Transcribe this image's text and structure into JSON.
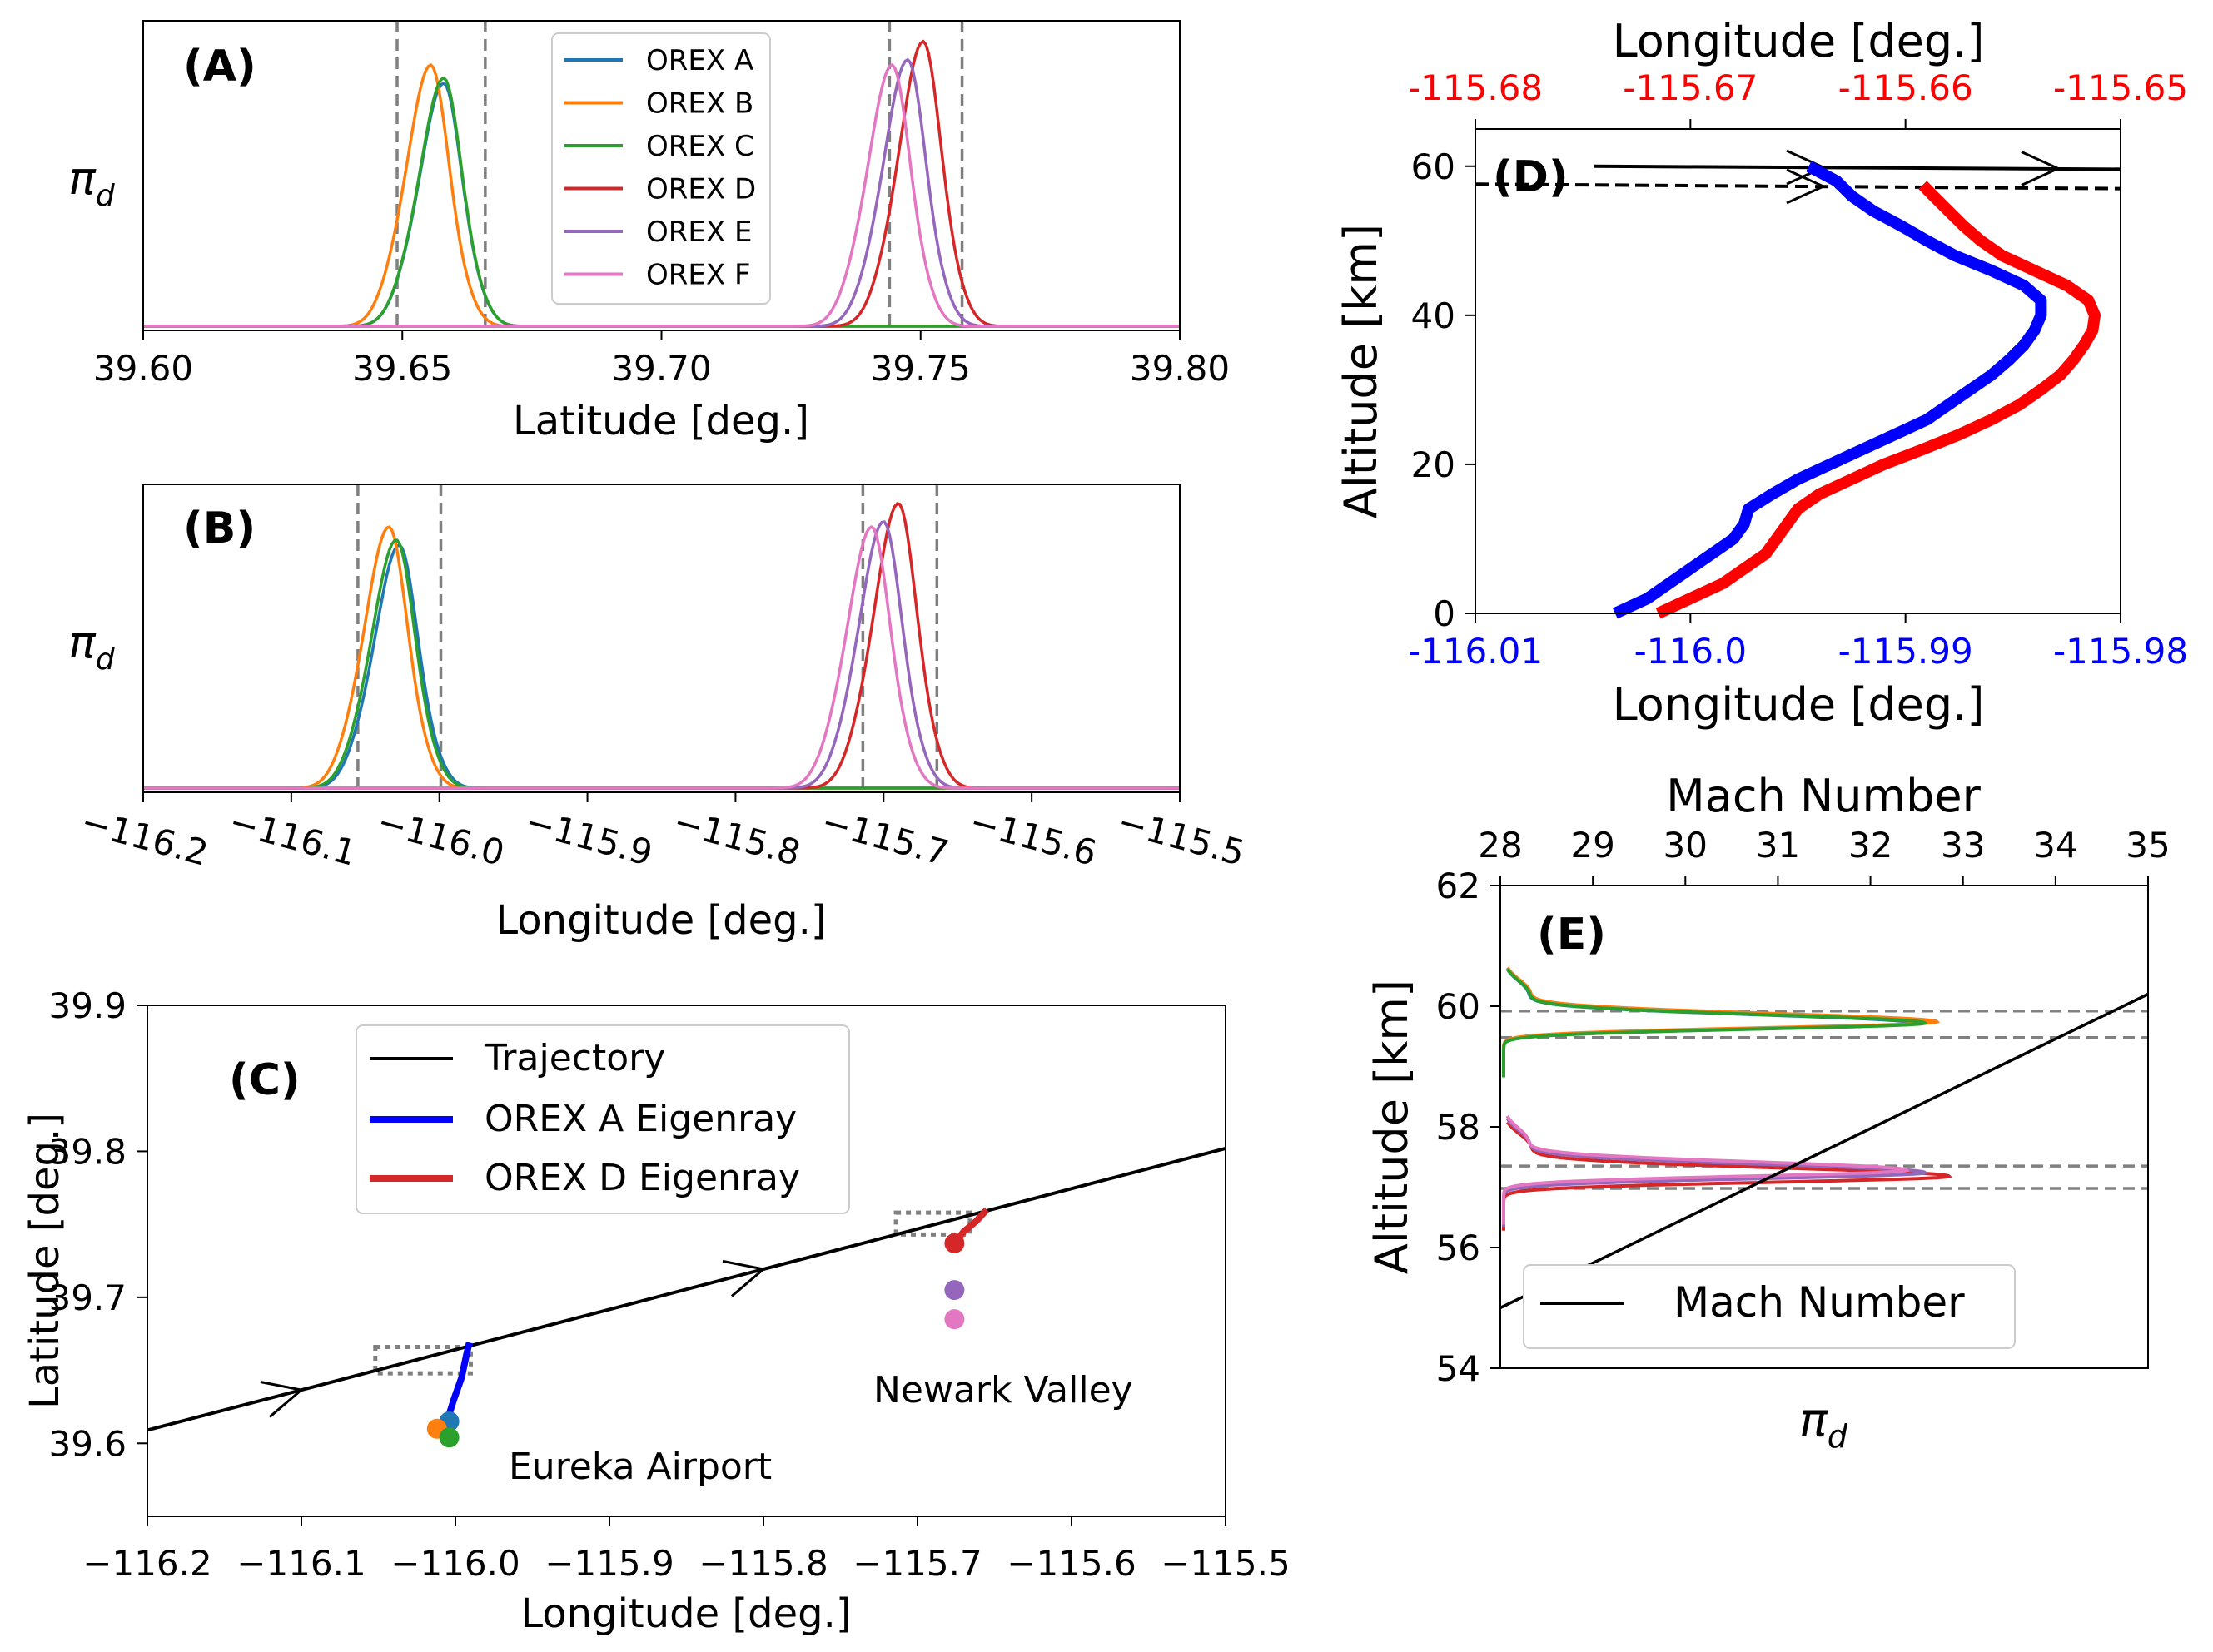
{
  "colors": {
    "orex_a": "#1f77b4",
    "orex_b": "#ff7f0e",
    "orex_c": "#2ca02c",
    "orex_d": "#d62728",
    "orex_e": "#9467bd",
    "orex_f": "#e377c2",
    "eigen_a": "#0000ff",
    "eigen_d": "#ff0000",
    "ref_line": "#808080",
    "frame": "#000000"
  },
  "chart_data": [
    {
      "panel": "A",
      "type": "line",
      "panel_label": "(A)",
      "xlabel": "Latitude [deg.]",
      "ylabel": "π_d",
      "xlim": [
        39.6,
        39.8
      ],
      "xticks": [
        "39.60",
        "39.65",
        "39.70",
        "39.75",
        "39.80"
      ],
      "ref_lines": [
        39.649,
        39.666,
        39.744,
        39.758
      ],
      "legend": [
        "OREX A",
        "OREX B",
        "OREX C",
        "OREX D",
        "OREX E",
        "OREX F"
      ],
      "series": [
        {
          "name": "OREX A",
          "peak": 39.658,
          "height": 0.93
        },
        {
          "name": "OREX B",
          "peak": 39.6555,
          "height": 1.0
        },
        {
          "name": "OREX C",
          "peak": 39.658,
          "height": 0.95
        },
        {
          "name": "OREX D",
          "peak": 39.7505,
          "height": 1.09
        },
        {
          "name": "OREX E",
          "peak": 39.7475,
          "height": 1.02
        },
        {
          "name": "OREX F",
          "peak": 39.7445,
          "height": 1.0
        }
      ]
    },
    {
      "panel": "B",
      "type": "line",
      "panel_label": "(B)",
      "xlabel": "Longitude [deg.]",
      "ylabel": "π_d",
      "xlim": [
        -116.2,
        -115.5
      ],
      "xticks": [
        "−116.2",
        "−116.1",
        "−116.0",
        "−115.9",
        "−115.8",
        "−115.7",
        "−115.6",
        "−115.5"
      ],
      "ref_lines": [
        -116.055,
        -115.999,
        -115.714,
        -115.664
      ],
      "series": [
        {
          "name": "OREX A",
          "peak": -116.027,
          "height": 0.93
        },
        {
          "name": "OREX B",
          "peak": -116.034,
          "height": 1.0
        },
        {
          "name": "OREX C",
          "peak": -116.029,
          "height": 0.95
        },
        {
          "name": "OREX D",
          "peak": -115.69,
          "height": 1.09
        },
        {
          "name": "OREX E",
          "peak": -115.7,
          "height": 1.02
        },
        {
          "name": "OREX F",
          "peak": -115.708,
          "height": 1.0
        }
      ]
    },
    {
      "panel": "C",
      "type": "line",
      "panel_label": "(C)",
      "xlabel": "Longitude [deg.]",
      "ylabel": "Latitude [deg.]",
      "xlim": [
        -116.2,
        -115.5
      ],
      "ylim": [
        39.55,
        39.9
      ],
      "xticks": [
        "−116.2",
        "−116.1",
        "−116.0",
        "−115.9",
        "−115.8",
        "−115.7",
        "−115.6",
        "−115.5"
      ],
      "yticks": [
        "39.6",
        "39.7",
        "39.8",
        "39.9"
      ],
      "legend": [
        "Trajectory",
        "OREX A Eigenray",
        "OREX D Eigenray"
      ],
      "trajectory": [
        [
          -116.2,
          39.609
        ],
        [
          -115.5,
          39.802
        ]
      ],
      "eigenray_a": [
        [
          -116.004,
          39.614
        ],
        [
          -116.004,
          39.62
        ],
        [
          -116.001,
          39.63
        ],
        [
          -115.996,
          39.645
        ],
        [
          -115.993,
          39.66
        ],
        [
          -115.991,
          39.669
        ]
      ],
      "eigenray_d": [
        [
          -115.676,
          39.737
        ],
        [
          -115.67,
          39.745
        ],
        [
          -115.662,
          39.752
        ],
        [
          -115.655,
          39.76
        ]
      ],
      "stations": [
        {
          "name": "OREX A",
          "x": -116.004,
          "y": 39.615
        },
        {
          "name": "OREX B",
          "x": -116.012,
          "y": 39.61
        },
        {
          "name": "OREX C",
          "x": -116.004,
          "y": 39.604
        },
        {
          "name": "OREX D",
          "x": -115.676,
          "y": 39.737
        },
        {
          "name": "OREX E",
          "x": -115.676,
          "y": 39.705
        },
        {
          "name": "OREX F",
          "x": -115.676,
          "y": 39.685
        }
      ],
      "dotted_boxes": [
        {
          "x1": -116.052,
          "x2": -115.99,
          "y1": 39.648,
          "y2": 39.666
        },
        {
          "x1": -115.714,
          "x2": -115.666,
          "y1": 39.743,
          "y2": 39.758
        }
      ],
      "annotations": [
        {
          "text": "Eureka Airport",
          "x": -115.99,
          "y": 39.589
        },
        {
          "text": "Newark Valley",
          "x": -115.845,
          "y": 39.641
        }
      ]
    },
    {
      "panel": "D",
      "type": "line",
      "panel_label": "(D)",
      "xlabel": "Longitude [deg.]",
      "top_xlabel": "Longitude [deg.]",
      "ylabel": "Altitude [km]",
      "xlim": [
        -116.01,
        -115.98
      ],
      "top_xlim": [
        -115.68,
        -115.65
      ],
      "ylim": [
        0,
        65
      ],
      "xticks": [
        "-116.01",
        "-116.0",
        "-115.99",
        "-115.98"
      ],
      "top_xticks": [
        "-115.68",
        "-115.67",
        "-115.66",
        "-115.65"
      ],
      "yticks": [
        "0",
        "20",
        "40",
        "60"
      ],
      "eigenray_a": [
        [
          -116.0035,
          0
        ],
        [
          -116.002,
          2
        ],
        [
          -116.001,
          4
        ],
        [
          -116.0,
          6
        ],
        [
          -115.999,
          8
        ],
        [
          -115.998,
          10
        ],
        [
          -115.9975,
          12
        ],
        [
          -115.9973,
          14
        ],
        [
          -115.9962,
          16
        ],
        [
          -115.995,
          18
        ],
        [
          -115.9935,
          20
        ],
        [
          -115.992,
          22
        ],
        [
          -115.9905,
          24
        ],
        [
          -115.989,
          26
        ],
        [
          -115.988,
          28
        ],
        [
          -115.987,
          30
        ],
        [
          -115.986,
          32
        ],
        [
          -115.9852,
          34
        ],
        [
          -115.9845,
          36
        ],
        [
          -115.984,
          38
        ],
        [
          -115.9837,
          40
        ],
        [
          -115.9837,
          42
        ],
        [
          -115.9845,
          44
        ],
        [
          -115.986,
          46
        ],
        [
          -115.9877,
          48
        ],
        [
          -115.989,
          50
        ],
        [
          -115.9902,
          52
        ],
        [
          -115.9915,
          54
        ],
        [
          -115.9925,
          56
        ],
        [
          -115.9932,
          58
        ],
        [
          -115.9945,
          60
        ]
      ],
      "eigenray_d": [
        [
          -115.6715,
          0
        ],
        [
          -115.67,
          2
        ],
        [
          -115.6685,
          4
        ],
        [
          -115.6675,
          6
        ],
        [
          -115.6665,
          8
        ],
        [
          -115.666,
          10
        ],
        [
          -115.6655,
          12
        ],
        [
          -115.665,
          14
        ],
        [
          -115.664,
          16
        ],
        [
          -115.6625,
          18
        ],
        [
          -115.661,
          20
        ],
        [
          -115.6592,
          22
        ],
        [
          -115.6575,
          24
        ],
        [
          -115.656,
          26
        ],
        [
          -115.6547,
          28
        ],
        [
          -115.6537,
          30
        ],
        [
          -115.6528,
          32
        ],
        [
          -115.6522,
          34
        ],
        [
          -115.6517,
          36
        ],
        [
          -115.6513,
          38
        ],
        [
          -115.6512,
          40
        ],
        [
          -115.6515,
          42
        ],
        [
          -115.6525,
          44
        ],
        [
          -115.654,
          46
        ],
        [
          -115.6555,
          48
        ],
        [
          -115.6565,
          50
        ],
        [
          -115.6573,
          52
        ],
        [
          -115.658,
          54
        ],
        [
          -115.6587,
          56
        ],
        [
          -115.6592,
          57.5
        ]
      ],
      "trajectory_solid": {
        "y_start": 60,
        "y_end": 59.6
      },
      "trajectory_dashed": {
        "y_start": 57.6,
        "y_end": 57.0
      }
    },
    {
      "panel": "E",
      "type": "line",
      "panel_label": "(E)",
      "xlabel": "π_d",
      "top_xlabel": "Mach Number",
      "ylabel": "Altitude [km]",
      "top_xlim": [
        28,
        35
      ],
      "ylim": [
        54,
        62
      ],
      "top_xticks": [
        "28",
        "29",
        "30",
        "31",
        "32",
        "33",
        "34",
        "35"
      ],
      "yticks": [
        "54",
        "56",
        "58",
        "60",
        "62"
      ],
      "ref_lines": [
        59.92,
        59.48,
        57.35,
        56.98
      ],
      "legend": [
        "Mach Number"
      ],
      "mach_line": [
        [
          28,
          55.0
        ],
        [
          35,
          60.2
        ]
      ],
      "series": [
        {
          "name": "OREX A",
          "peak_alt": 59.72,
          "height": 0.68
        },
        {
          "name": "OREX B",
          "peak_alt": 59.74,
          "height": 0.72
        },
        {
          "name": "OREX C",
          "peak_alt": 59.72,
          "height": 0.7
        },
        {
          "name": "OREX D",
          "peak_alt": 57.18,
          "height": 0.74
        },
        {
          "name": "OREX E",
          "peak_alt": 57.24,
          "height": 0.7
        },
        {
          "name": "OREX F",
          "peak_alt": 57.28,
          "height": 0.67
        }
      ]
    }
  ]
}
